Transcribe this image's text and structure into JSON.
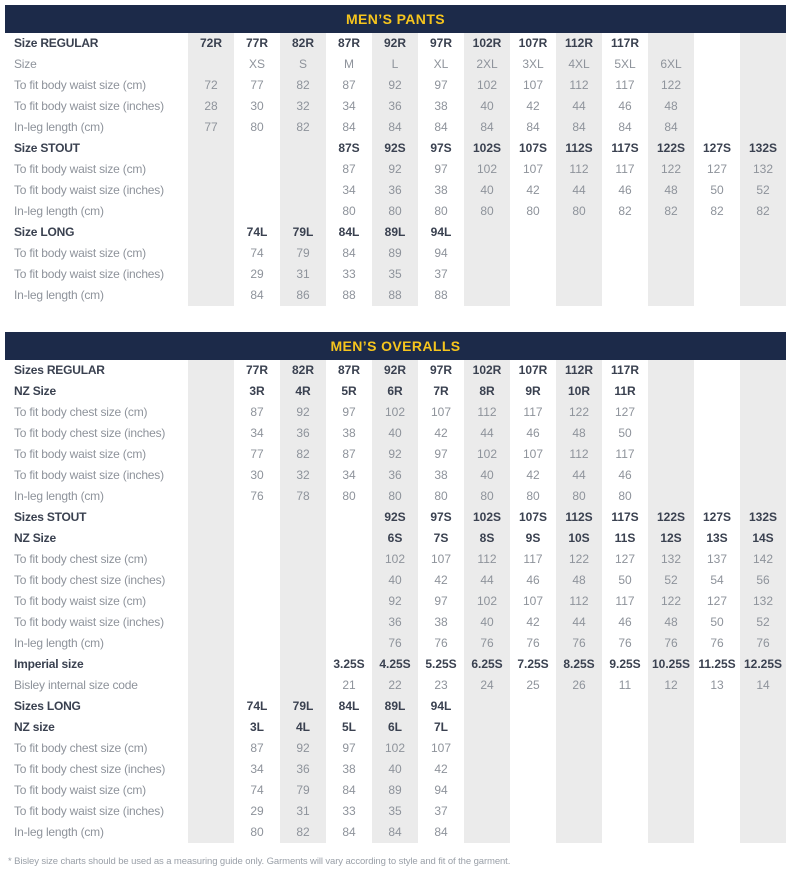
{
  "colors": {
    "header_bg": "#1c2a49",
    "header_text": "#f6c51d",
    "column_stripe": "#ebebeb",
    "bold_text": "#3a4150",
    "value_text": "#8e939b"
  },
  "footnote": "* Bisley size charts should be used as a measuring guide only. Garments will vary according to style and fit of the garment.",
  "tables": [
    {
      "title": "MEN’S PANTS",
      "rows": [
        {
          "label": "Size REGULAR",
          "bold": true,
          "cells": [
            "72R",
            "77R",
            "82R",
            "87R",
            "92R",
            "97R",
            "102R",
            "107R",
            "112R",
            "117R",
            "",
            "",
            ""
          ]
        },
        {
          "label": "Size",
          "bold": false,
          "cells": [
            "",
            "XS",
            "S",
            "M",
            "L",
            "XL",
            "2XL",
            "3XL",
            "4XL",
            "5XL",
            "6XL",
            "",
            ""
          ]
        },
        {
          "label": "To fit body waist size (cm)",
          "bold": false,
          "cells": [
            "72",
            "77",
            "82",
            "87",
            "92",
            "97",
            "102",
            "107",
            "112",
            "117",
            "122",
            "",
            ""
          ]
        },
        {
          "label": "To fit body waist size (inches)",
          "bold": false,
          "cells": [
            "28",
            "30",
            "32",
            "34",
            "36",
            "38",
            "40",
            "42",
            "44",
            "46",
            "48",
            "",
            ""
          ]
        },
        {
          "label": "In-leg length (cm)",
          "bold": false,
          "cells": [
            "77",
            "80",
            "82",
            "84",
            "84",
            "84",
            "84",
            "84",
            "84",
            "84",
            "84",
            "",
            ""
          ]
        },
        {
          "label": "Size STOUT",
          "bold": true,
          "cells": [
            "",
            "",
            "",
            "87S",
            "92S",
            "97S",
            "102S",
            "107S",
            "112S",
            "117S",
            "122S",
            "127S",
            "132S"
          ]
        },
        {
          "label": "To fit body waist size (cm)",
          "bold": false,
          "cells": [
            "",
            "",
            "",
            "87",
            "92",
            "97",
            "102",
            "107",
            "112",
            "117",
            "122",
            "127",
            "132"
          ]
        },
        {
          "label": "To fit body waist size (inches)",
          "bold": false,
          "cells": [
            "",
            "",
            "",
            "34",
            "36",
            "38",
            "40",
            "42",
            "44",
            "46",
            "48",
            "50",
            "52"
          ]
        },
        {
          "label": "In-leg length (cm)",
          "bold": false,
          "cells": [
            "",
            "",
            "",
            "80",
            "80",
            "80",
            "80",
            "80",
            "80",
            "82",
            "82",
            "82",
            "82"
          ]
        },
        {
          "label": "Size LONG",
          "bold": true,
          "cells": [
            "",
            "74L",
            "79L",
            "84L",
            "89L",
            "94L",
            "",
            "",
            "",
            "",
            "",
            "",
            ""
          ]
        },
        {
          "label": "To fit body waist size (cm)",
          "bold": false,
          "cells": [
            "",
            "74",
            "79",
            "84",
            "89",
            "94",
            "",
            "",
            "",
            "",
            "",
            "",
            ""
          ]
        },
        {
          "label": "To fit body waist size (inches)",
          "bold": false,
          "cells": [
            "",
            "29",
            "31",
            "33",
            "35",
            "37",
            "",
            "",
            "",
            "",
            "",
            "",
            ""
          ]
        },
        {
          "label": "In-leg length (cm)",
          "bold": false,
          "cells": [
            "",
            "84",
            "86",
            "88",
            "88",
            "88",
            "",
            "",
            "",
            "",
            "",
            "",
            ""
          ]
        }
      ]
    },
    {
      "title": "MEN’S OVERALLS",
      "rows": [
        {
          "label": "Sizes REGULAR",
          "bold": true,
          "cells": [
            "",
            "77R",
            "82R",
            "87R",
            "92R",
            "97R",
            "102R",
            "107R",
            "112R",
            "117R",
            "",
            "",
            ""
          ]
        },
        {
          "label": "NZ Size",
          "bold": true,
          "cells": [
            "",
            "3R",
            "4R",
            "5R",
            "6R",
            "7R",
            "8R",
            "9R",
            "10R",
            "11R",
            "",
            "",
            ""
          ]
        },
        {
          "label": "To fit body chest size (cm)",
          "bold": false,
          "cells": [
            "",
            "87",
            "92",
            "97",
            "102",
            "107",
            "112",
            "117",
            "122",
            "127",
            "",
            "",
            ""
          ]
        },
        {
          "label": "To fit body chest size (inches)",
          "bold": false,
          "cells": [
            "",
            "34",
            "36",
            "38",
            "40",
            "42",
            "44",
            "46",
            "48",
            "50",
            "",
            "",
            ""
          ]
        },
        {
          "label": "To fit body waist size (cm)",
          "bold": false,
          "cells": [
            "",
            "77",
            "82",
            "87",
            "92",
            "97",
            "102",
            "107",
            "112",
            "117",
            "",
            "",
            ""
          ]
        },
        {
          "label": "To fit body waist size (inches)",
          "bold": false,
          "cells": [
            "",
            "30",
            "32",
            "34",
            "36",
            "38",
            "40",
            "42",
            "44",
            "46",
            "",
            "",
            ""
          ]
        },
        {
          "label": "In-leg length (cm)",
          "bold": false,
          "cells": [
            "",
            "76",
            "78",
            "80",
            "80",
            "80",
            "80",
            "80",
            "80",
            "80",
            "",
            "",
            ""
          ]
        },
        {
          "label": "Sizes STOUT",
          "bold": true,
          "cells": [
            "",
            "",
            "",
            "",
            "92S",
            "97S",
            "102S",
            "107S",
            "112S",
            "117S",
            "122S",
            "127S",
            "132S"
          ]
        },
        {
          "label": "NZ Size",
          "bold": true,
          "cells": [
            "",
            "",
            "",
            "",
            "6S",
            "7S",
            "8S",
            "9S",
            "10S",
            "11S",
            "12S",
            "13S",
            "14S"
          ]
        },
        {
          "label": "To fit body chest size (cm)",
          "bold": false,
          "cells": [
            "",
            "",
            "",
            "",
            "102",
            "107",
            "112",
            "117",
            "122",
            "127",
            "132",
            "137",
            "142"
          ]
        },
        {
          "label": "To fit body chest size (inches)",
          "bold": false,
          "cells": [
            "",
            "",
            "",
            "",
            "40",
            "42",
            "44",
            "46",
            "48",
            "50",
            "52",
            "54",
            "56"
          ]
        },
        {
          "label": "To fit body waist size (cm)",
          "bold": false,
          "cells": [
            "",
            "",
            "",
            "",
            "92",
            "97",
            "102",
            "107",
            "112",
            "117",
            "122",
            "127",
            "132"
          ]
        },
        {
          "label": "To fit body waist size (inches)",
          "bold": false,
          "cells": [
            "",
            "",
            "",
            "",
            "36",
            "38",
            "40",
            "42",
            "44",
            "46",
            "48",
            "50",
            "52"
          ]
        },
        {
          "label": "In-leg length (cm)",
          "bold": false,
          "cells": [
            "",
            "",
            "",
            "",
            "76",
            "76",
            "76",
            "76",
            "76",
            "76",
            "76",
            "76",
            "76"
          ]
        },
        {
          "label": "Imperial size",
          "bold": true,
          "cells": [
            "",
            "",
            "",
            "3.25S",
            "4.25S",
            "5.25S",
            "6.25S",
            "7.25S",
            "8.25S",
            "9.25S",
            "10.25S",
            "11.25S",
            "12.25S"
          ]
        },
        {
          "label": "Bisley internal size code",
          "bold": false,
          "cells": [
            "",
            "",
            "",
            "21",
            "22",
            "23",
            "24",
            "25",
            "26",
            "11",
            "12",
            "13",
            "14"
          ]
        },
        {
          "label": "Sizes LONG",
          "bold": true,
          "cells": [
            "",
            "74L",
            "79L",
            "84L",
            "89L",
            "94L",
            "",
            "",
            "",
            "",
            "",
            "",
            ""
          ]
        },
        {
          "label": "NZ size",
          "bold": true,
          "cells": [
            "",
            "3L",
            "4L",
            "5L",
            "6L",
            "7L",
            "",
            "",
            "",
            "",
            "",
            "",
            ""
          ]
        },
        {
          "label": "To fit body chest size (cm)",
          "bold": false,
          "cells": [
            "",
            "87",
            "92",
            "97",
            "102",
            "107",
            "",
            "",
            "",
            "",
            "",
            "",
            ""
          ]
        },
        {
          "label": "To fit body chest size (inches)",
          "bold": false,
          "cells": [
            "",
            "34",
            "36",
            "38",
            "40",
            "42",
            "",
            "",
            "",
            "",
            "",
            "",
            ""
          ]
        },
        {
          "label": "To fit body waist size (cm)",
          "bold": false,
          "cells": [
            "",
            "74",
            "79",
            "84",
            "89",
            "94",
            "",
            "",
            "",
            "",
            "",
            "",
            ""
          ]
        },
        {
          "label": "To fit body waist size (inches)",
          "bold": false,
          "cells": [
            "",
            "29",
            "31",
            "33",
            "35",
            "37",
            "",
            "",
            "",
            "",
            "",
            "",
            ""
          ]
        },
        {
          "label": "In-leg length (cm)",
          "bold": false,
          "cells": [
            "",
            "80",
            "82",
            "84",
            "84",
            "84",
            "",
            "",
            "",
            "",
            "",
            "",
            ""
          ]
        }
      ]
    }
  ]
}
